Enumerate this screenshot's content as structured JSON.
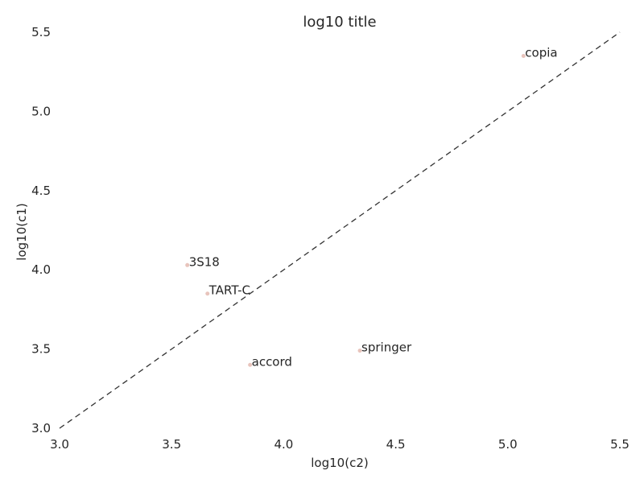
{
  "chart_data": {
    "type": "scatter",
    "title": "log10 title",
    "xlabel": "log10(c2)",
    "ylabel": "log10(c1)",
    "xlim": [
      3.0,
      5.5
    ],
    "ylim": [
      3.0,
      5.5
    ],
    "xticks": [
      "3.0",
      "3.5",
      "4.0",
      "4.5",
      "5.0",
      "5.5"
    ],
    "yticks": [
      "3.0",
      "3.5",
      "4.0",
      "4.5",
      "5.0",
      "5.5"
    ],
    "grid": false,
    "point_color": "#e8c4bc",
    "reference_line": {
      "style": "dashed",
      "color": "#333333",
      "x": [
        3.0,
        5.5
      ],
      "y": [
        3.0,
        5.5
      ]
    },
    "points": [
      {
        "label": "copia",
        "x": 5.07,
        "y": 5.35
      },
      {
        "label": "3S18",
        "x": 3.57,
        "y": 4.03
      },
      {
        "label": "TART-C",
        "x": 3.66,
        "y": 3.85
      },
      {
        "label": "springer",
        "x": 4.34,
        "y": 3.49
      },
      {
        "label": "accord",
        "x": 3.85,
        "y": 3.4
      }
    ]
  }
}
